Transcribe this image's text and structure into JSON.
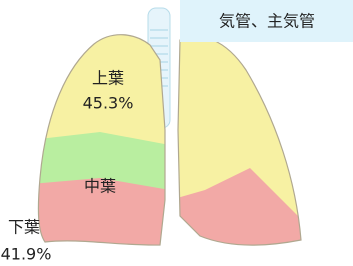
{
  "callout": {
    "label": "気管、主気管"
  },
  "lobes": [
    {
      "label": "上葉",
      "value": "45.3%"
    },
    {
      "label": "中葉"
    },
    {
      "label": "下葉",
      "value": "41.9%"
    }
  ]
}
